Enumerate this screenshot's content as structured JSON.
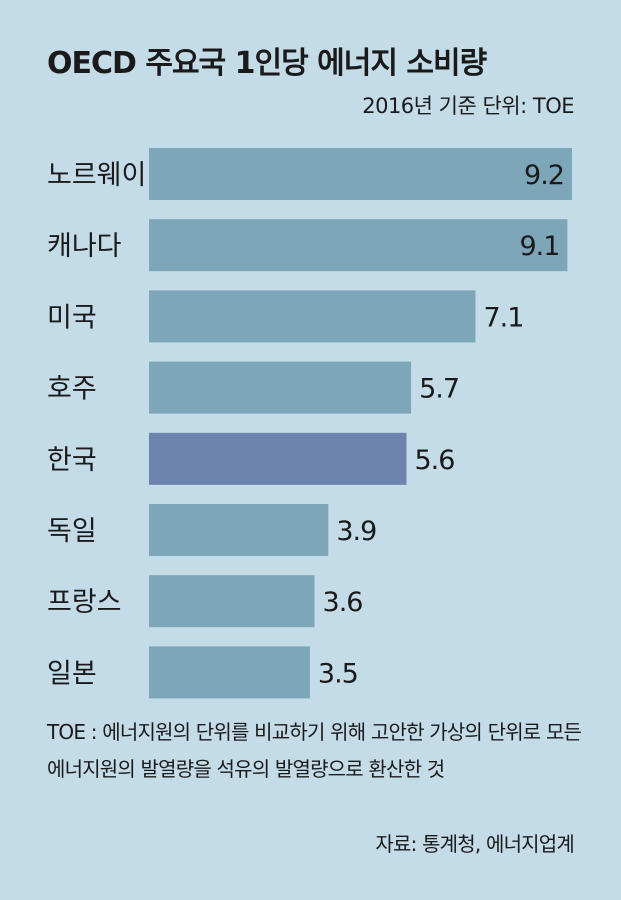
{
  "colors": {
    "background": "#c4dbe8",
    "bar": "#7da6b9",
    "highlight_bar": "#6c84ad"
  },
  "chart_data": {
    "type": "bar",
    "orientation": "horizontal",
    "title": "OECD 주요국 1인당 에너지 소비량",
    "unit_note": "2016년 기준 단위: TOE",
    "categories": [
      "노르웨이",
      "캐나다",
      "미국",
      "호주",
      "한국",
      "독일",
      "프랑스",
      "일본"
    ],
    "values": [
      9.2,
      9.1,
      7.1,
      5.7,
      5.6,
      3.9,
      3.6,
      3.5
    ],
    "data_labels": [
      "9.2",
      "9.1",
      "7.1",
      "5.7",
      "5.6",
      "3.9",
      "3.6",
      "3.5"
    ],
    "highlight_category": "한국",
    "xlim": [
      0,
      9.2
    ],
    "grid": false,
    "legend": "none",
    "footnote": "TOE : 에너지원의 단위를 비교하기 위해 고안한 가상의 단위로 모든 에너지원의 발열량을 석유의 발열량으로 환산한 것",
    "source": "자료: 통계청, 에너지업계"
  }
}
